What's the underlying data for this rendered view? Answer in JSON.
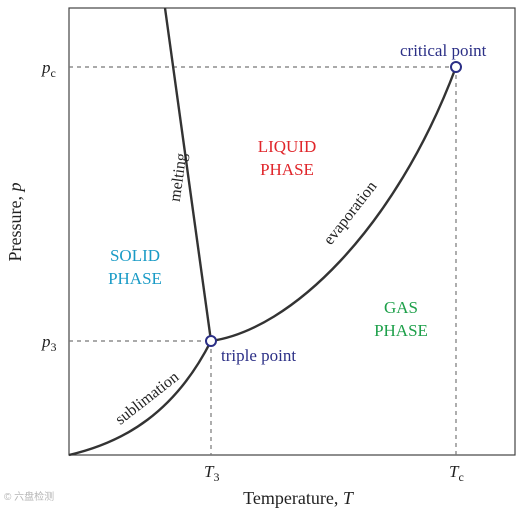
{
  "axes": {
    "x_label_prefix": "Temperature, ",
    "x_label_var": "T",
    "y_label_prefix": "Pressure, ",
    "y_label_var": "p"
  },
  "ticks": {
    "x3_main": "T",
    "x3_sub": "3",
    "xc_main": "T",
    "xc_sub": "c",
    "y3_main": "p",
    "y3_sub": "3",
    "yc_main": "p",
    "yc_sub": "c"
  },
  "regions": {
    "solid_line1": "SOLID",
    "solid_line2": "PHASE",
    "liquid_line1": "LIQUID",
    "liquid_line2": "PHASE",
    "gas_line1": "GAS",
    "gas_line2": "PHASE"
  },
  "curves": {
    "melting": "melting",
    "evaporation": "evaporation",
    "sublimation": "sublimation"
  },
  "points": {
    "triple": "triple point",
    "critical": "critical point"
  },
  "watermark": "© 六盘检测",
  "colors": {
    "solid": "#1a9bc6",
    "liquid": "#e0262b",
    "gas": "#1ea04a",
    "points": "#2b2f86",
    "curve": "#333333",
    "axis": "#333333",
    "dashed": "#777777"
  }
}
